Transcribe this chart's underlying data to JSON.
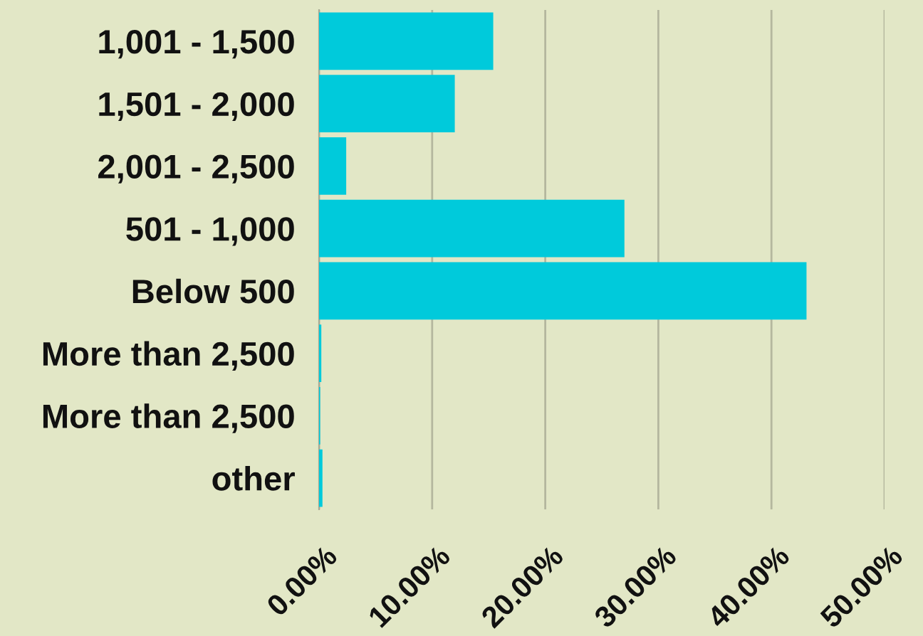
{
  "chart_data": {
    "type": "bar",
    "orientation": "horizontal",
    "categories": [
      "1,001 - 1,500",
      "1,501 - 2,000",
      "2,001 - 2,500",
      "501 - 1,000",
      "Below 500",
      "More than 2,500",
      "More than 2,500",
      "other"
    ],
    "values": [
      15.4,
      12.0,
      2.4,
      27.0,
      43.1,
      0.2,
      0.1,
      0.3
    ],
    "color": "#00cadb",
    "xlim": [
      0,
      50
    ],
    "xticks": [
      {
        "value": 0,
        "label": "0.00%"
      },
      {
        "value": 10,
        "label": "10.00%"
      },
      {
        "value": 20,
        "label": "20.00%"
      },
      {
        "value": 30,
        "label": "30.00%"
      },
      {
        "value": 40,
        "label": "40.00%"
      },
      {
        "value": 50,
        "label": "50.00%"
      }
    ],
    "grid": "x"
  }
}
